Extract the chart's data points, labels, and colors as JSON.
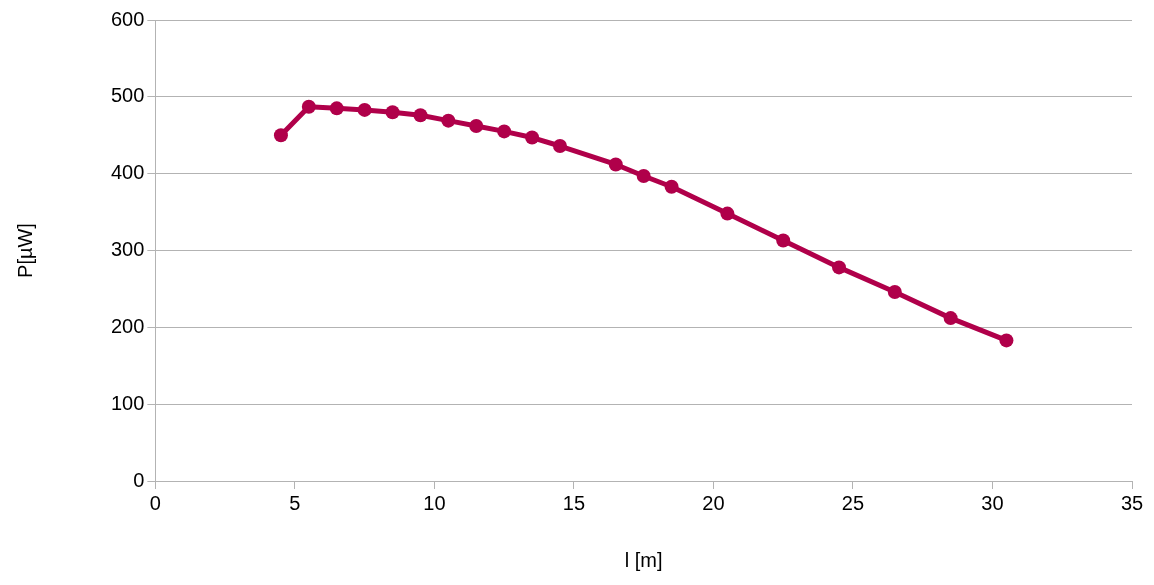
{
  "chart_data": {
    "type": "line",
    "xlabel": "l [m]",
    "ylabel": "P[µW]",
    "x": [
      4.5,
      5.5,
      6.5,
      7.5,
      8.5,
      9.5,
      10.5,
      11.5,
      12.5,
      13.5,
      14.5,
      16.5,
      17.5,
      18.5,
      20.5,
      22.5,
      24.5,
      26.5,
      28.5,
      30.5
    ],
    "series": [
      {
        "color": "#b0004a",
        "values": [
          450,
          487,
          485,
          483,
          480,
          476,
          469,
          462,
          455,
          447,
          436,
          412,
          397,
          383,
          348,
          313,
          278,
          246,
          212,
          183
        ]
      }
    ],
    "xlim": [
      0,
      35
    ],
    "xticks": [
      0,
      5,
      10,
      15,
      20,
      25,
      30,
      35
    ],
    "ylim": [
      0,
      600
    ],
    "yticks": [
      0,
      100,
      200,
      300,
      400,
      500,
      600
    ],
    "grid": "y",
    "legend": false,
    "marker": "circle",
    "line_style": "solid"
  }
}
